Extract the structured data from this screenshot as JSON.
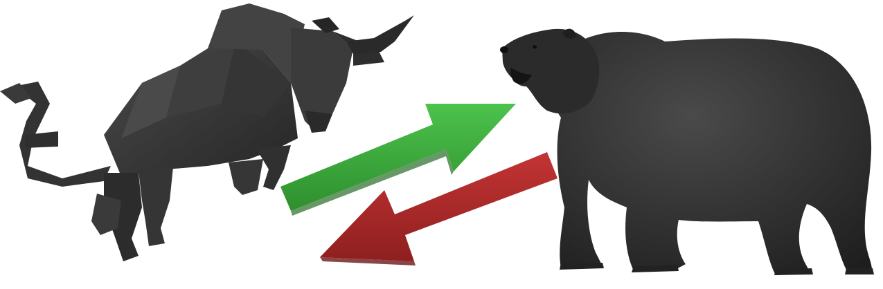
{
  "scene": {
    "background_color": "#ffffff",
    "subjects": [
      {
        "name": "bull",
        "icon": "bull-icon",
        "color": "#3a3a3a"
      },
      {
        "name": "bear",
        "icon": "bear-icon",
        "color": "#2c2c2c"
      }
    ],
    "arrows": [
      {
        "name": "up-arrow",
        "icon": "arrow-up-right-icon",
        "color": "#3aab3a"
      },
      {
        "name": "down-arrow",
        "icon": "arrow-down-left-icon",
        "color": "#b02a2a"
      }
    ]
  }
}
